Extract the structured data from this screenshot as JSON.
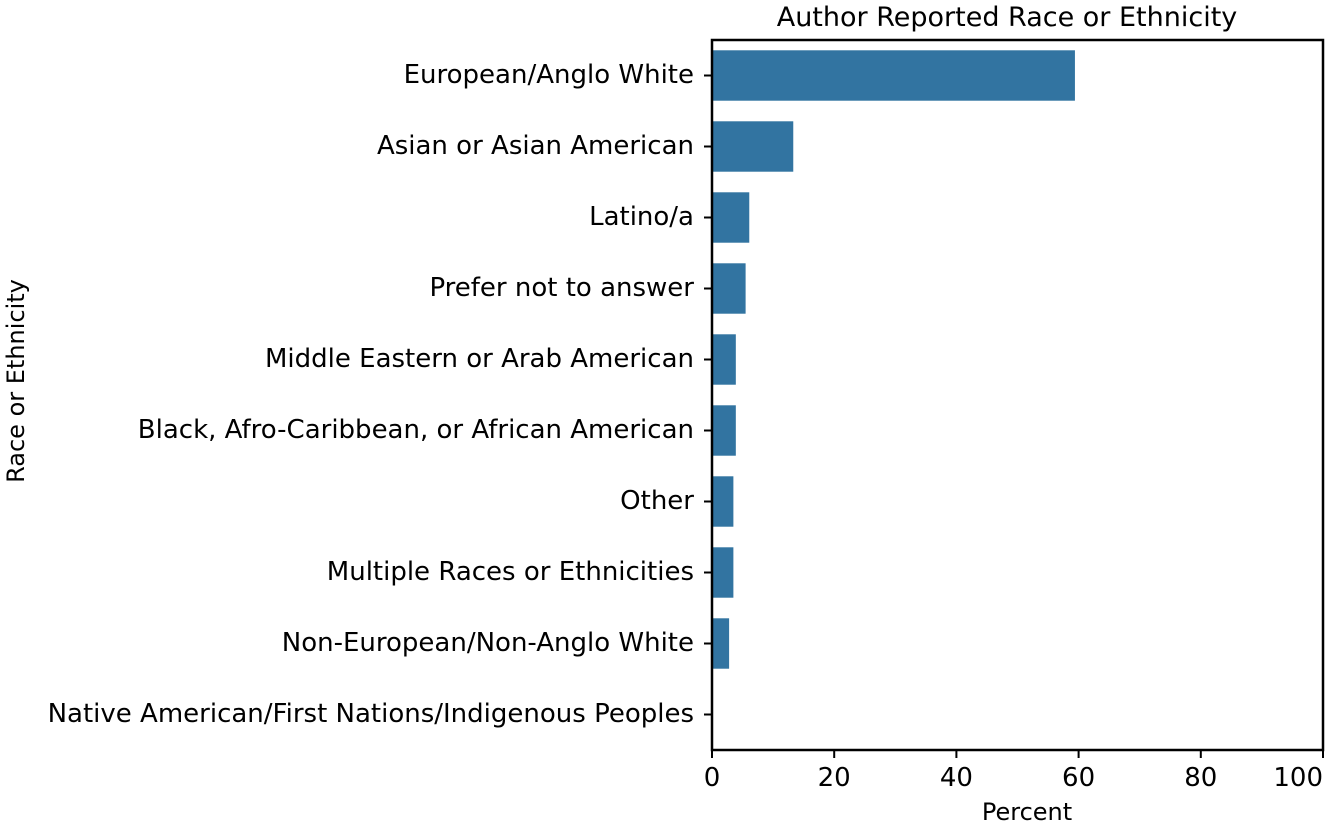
{
  "chart_data": {
    "type": "bar",
    "orientation": "horizontal",
    "title": "Author Reported Race or Ethnicity",
    "xlabel": "Percent",
    "ylabel": "Race or Ethnicity",
    "xlim": [
      0,
      100
    ],
    "xticks": [
      0,
      20,
      40,
      60,
      80,
      100
    ],
    "grid": false,
    "bar_color": "#3274a1",
    "categories": [
      "European/Anglo White",
      "Asian or Asian American",
      "Latino/a",
      "Prefer not to answer",
      "Middle Eastern or Arab American",
      "Black, Afro-Caribbean, or African American",
      "Other",
      "Multiple Races or Ethnicities",
      "Non-European/Non-Anglo White",
      "Native American/First Nations/Indigenous Peoples"
    ],
    "values": [
      59.4,
      13.3,
      6.1,
      5.5,
      3.9,
      3.9,
      3.5,
      3.5,
      2.8,
      0.0
    ]
  }
}
